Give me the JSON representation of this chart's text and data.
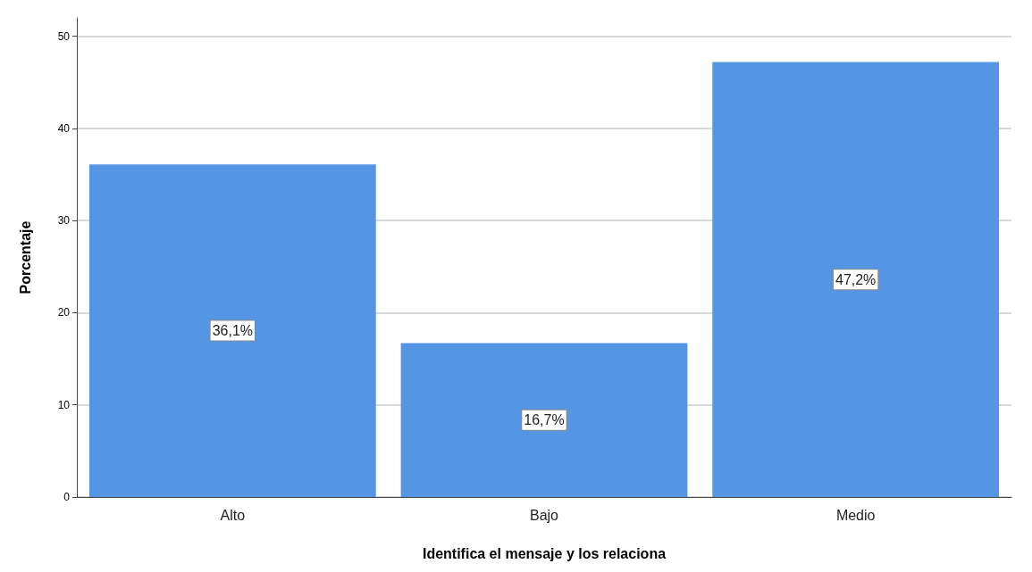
{
  "chart_data": {
    "type": "bar",
    "xlabel": "Identifica el mensaje y los relaciona",
    "ylabel": "Porcentaje",
    "categories": [
      "Alto",
      "Bajo",
      "Medio"
    ],
    "values": [
      36.1,
      16.7,
      47.2
    ],
    "value_labels": [
      "36,1%",
      "16,7%",
      "47,2%"
    ],
    "color": "#5596e4",
    "ylim": [
      0,
      52
    ],
    "yticks": [
      0,
      10,
      20,
      30,
      40,
      50
    ],
    "grid": "y"
  }
}
